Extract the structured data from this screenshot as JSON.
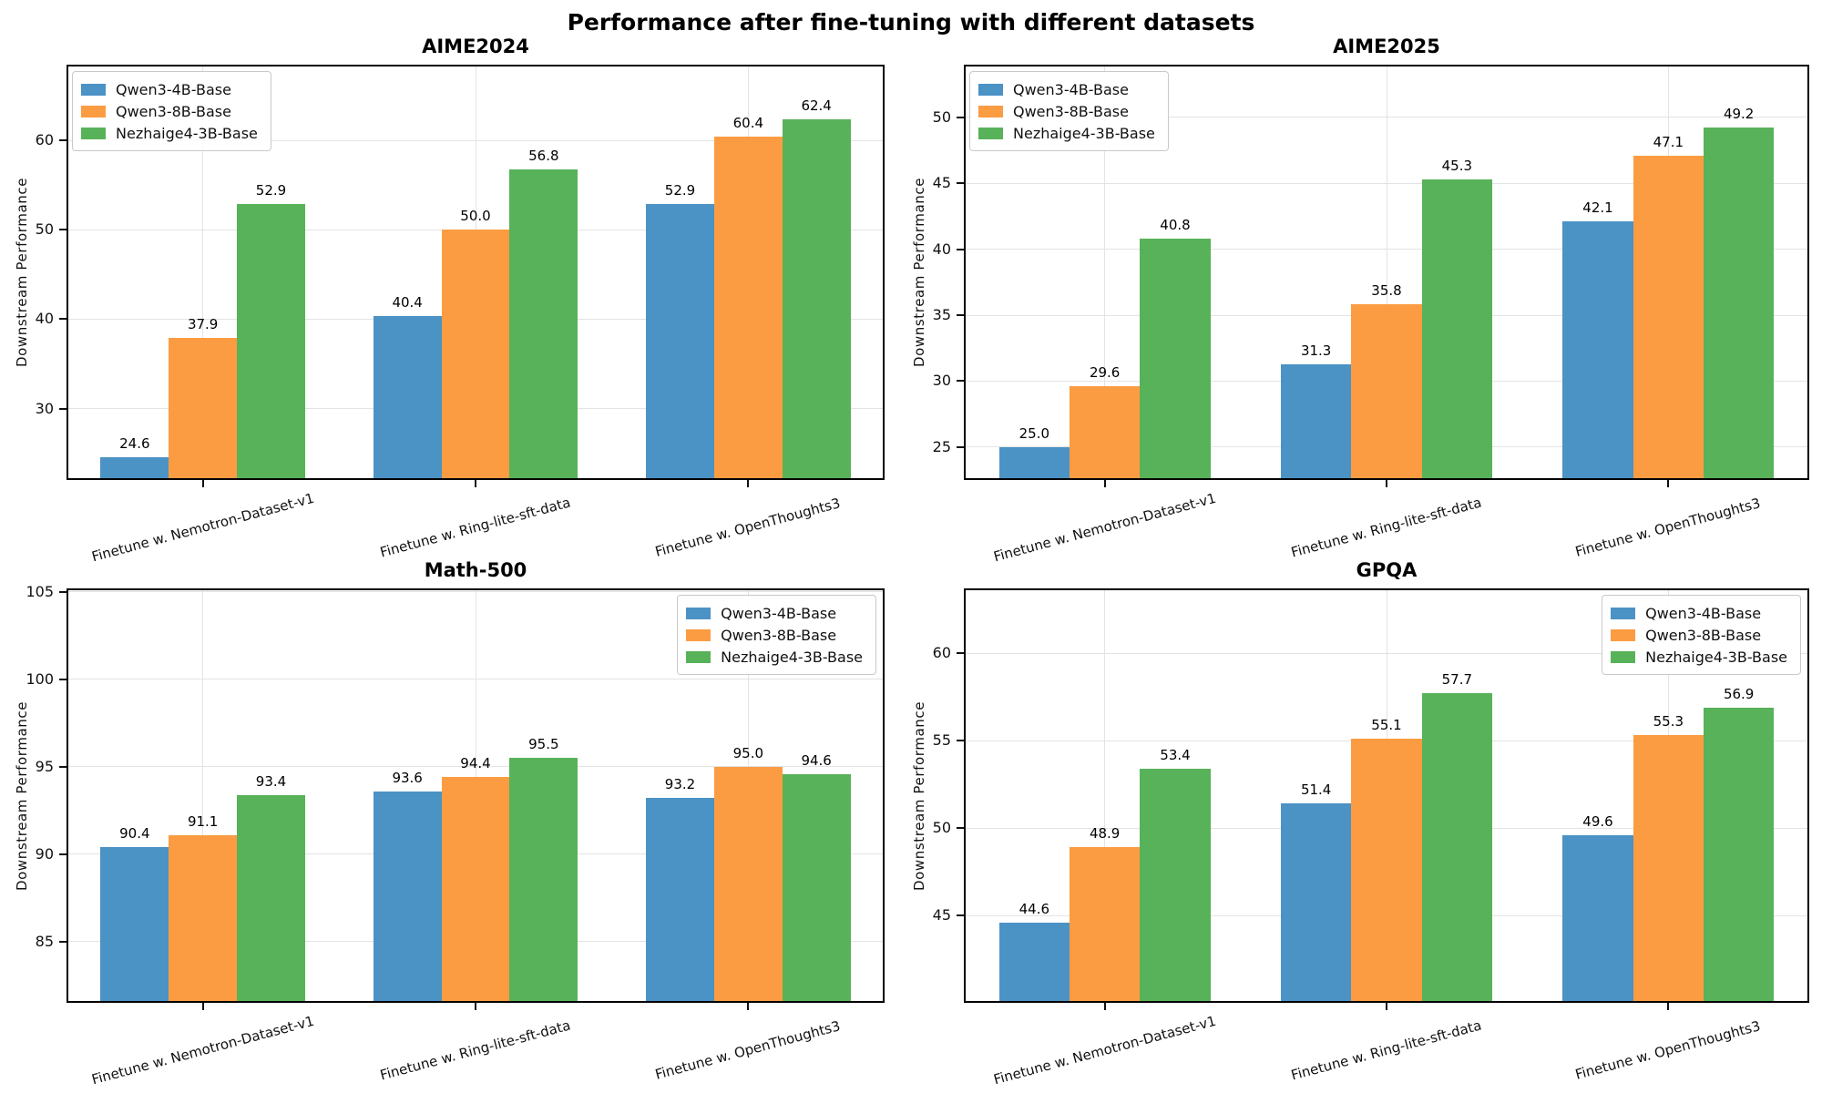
{
  "suptitle": "Performance after fine-tuning with different datasets",
  "palette": {
    "qwen3_4b_blue": "#4B92C5",
    "qwen3_8b_orange": "#FC9C42",
    "nezhaige4_3b_green": "#58B259",
    "grid": "#e3e3e3",
    "spine": "#000000"
  },
  "chart_data": [
    {
      "type": "bar",
      "title": "AIME2024",
      "xlabel": "",
      "ylabel": "Downstream Performance",
      "categories": [
        "Finetune w. Nemotron-Dataset-v1",
        "Finetune w. Ring-lite-sft-data",
        "Finetune w. OpenThoughts3"
      ],
      "series": [
        {
          "name": "Qwen3-4B-Base",
          "color": "#4B92C5",
          "values": [
            24.6,
            40.4,
            52.9
          ]
        },
        {
          "name": "Qwen3-8B-Base",
          "color": "#FC9C42",
          "values": [
            37.9,
            50.0,
            60.4
          ]
        },
        {
          "name": "Nezhaige4-3B-Base",
          "color": "#58B259",
          "values": [
            52.9,
            56.8,
            62.4
          ]
        }
      ],
      "ylim": [
        22.0,
        68.5
      ],
      "yticks": [
        30,
        40,
        50,
        60
      ],
      "grid": true,
      "legend_position": "upper-left",
      "bar_label_format": "0.1f"
    },
    {
      "type": "bar",
      "title": "AIME2025",
      "xlabel": "",
      "ylabel": "Downstream Performance",
      "categories": [
        "Finetune w. Nemotron-Dataset-v1",
        "Finetune w. Ring-lite-sft-data",
        "Finetune w. OpenThoughts3"
      ],
      "series": [
        {
          "name": "Qwen3-4B-Base",
          "color": "#4B92C5",
          "values": [
            25.0,
            31.3,
            42.1
          ]
        },
        {
          "name": "Qwen3-8B-Base",
          "color": "#FC9C42",
          "values": [
            29.6,
            35.8,
            47.1
          ]
        },
        {
          "name": "Nezhaige4-3B-Base",
          "color": "#58B259",
          "values": [
            40.8,
            45.3,
            49.2
          ]
        }
      ],
      "ylim": [
        22.5,
        54.0
      ],
      "yticks": [
        25,
        30,
        35,
        40,
        45,
        50
      ],
      "grid": true,
      "legend_position": "upper-left",
      "bar_label_format": "0.1f"
    },
    {
      "type": "bar",
      "title": "Math-500",
      "xlabel": "",
      "ylabel": "Downstream Performance",
      "categories": [
        "Finetune w. Nemotron-Dataset-v1",
        "Finetune w. Ring-lite-sft-data",
        "Finetune w. OpenThoughts3"
      ],
      "series": [
        {
          "name": "Qwen3-4B-Base",
          "color": "#4B92C5",
          "values": [
            90.4,
            93.6,
            93.2
          ]
        },
        {
          "name": "Qwen3-8B-Base",
          "color": "#FC9C42",
          "values": [
            91.1,
            94.4,
            95.0
          ]
        },
        {
          "name": "Nezhaige4-3B-Base",
          "color": "#58B259",
          "values": [
            93.4,
            95.5,
            94.6
          ]
        }
      ],
      "ylim": [
        81.5,
        105.2
      ],
      "yticks": [
        85,
        90,
        95,
        100,
        105
      ],
      "grid": true,
      "legend_position": "upper-right",
      "bar_label_format": "0.1f"
    },
    {
      "type": "bar",
      "title": "GPQA",
      "xlabel": "",
      "ylabel": "Downstream Performance",
      "categories": [
        "Finetune w. Nemotron-Dataset-v1",
        "Finetune w. Ring-lite-sft-data",
        "Finetune w. OpenThoughts3"
      ],
      "series": [
        {
          "name": "Qwen3-4B-Base",
          "color": "#4B92C5",
          "values": [
            44.6,
            51.4,
            49.6
          ]
        },
        {
          "name": "Qwen3-8B-Base",
          "color": "#FC9C42",
          "values": [
            48.9,
            55.1,
            55.3
          ]
        },
        {
          "name": "Nezhaige4-3B-Base",
          "color": "#58B259",
          "values": [
            53.4,
            57.7,
            56.9
          ]
        }
      ],
      "ylim": [
        40.0,
        63.7
      ],
      "yticks": [
        45,
        50,
        55,
        60
      ],
      "grid": true,
      "legend_position": "upper-right",
      "bar_label_format": "0.1f"
    }
  ]
}
